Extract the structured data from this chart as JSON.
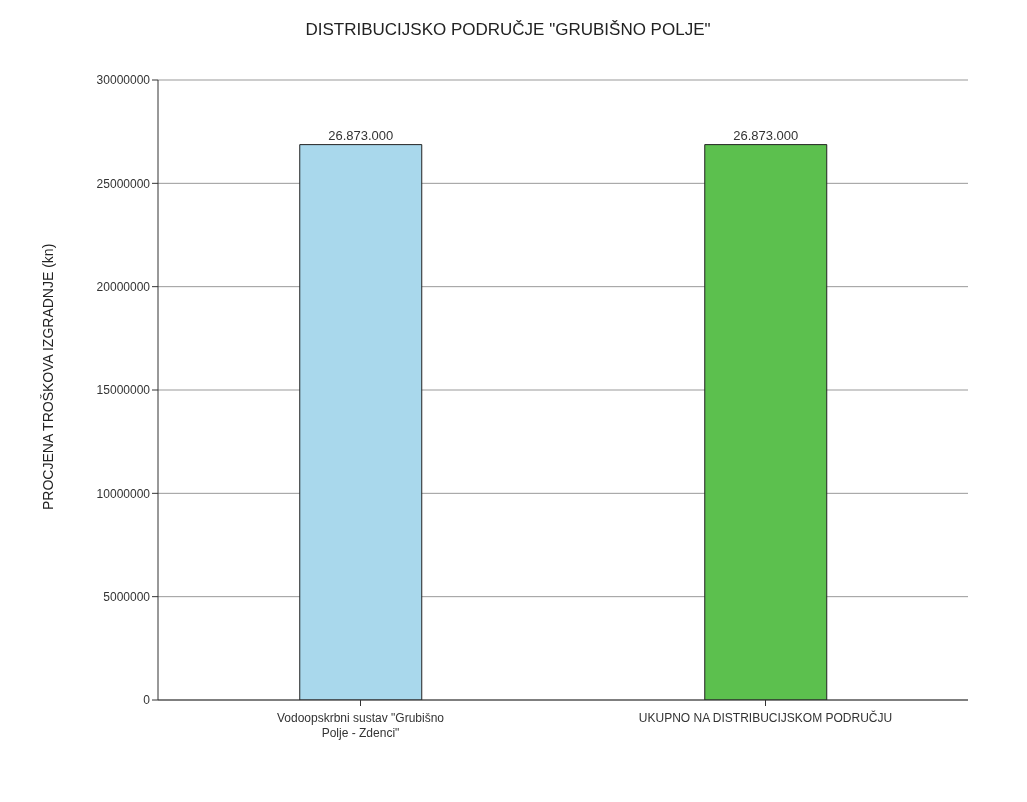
{
  "chart_data": {
    "type": "bar",
    "title": "DISTRIBUCIJSKO PODRUČJE \"GRUBIŠNO POLJE\"",
    "ylabel": "PROCJENA TROŠKOVA IZGRADNJE (kn)",
    "categories": [
      "Vodoopskrbni sustav \"Grubišno Polje - Zdenci\"",
      "UKUPNO NA DISTRIBUCIJSKOM PODRUČJU"
    ],
    "values": [
      26873000,
      26873000
    ],
    "colors": [
      "#a9d8ec",
      "#5cc04e"
    ],
    "value_labels": [
      "26.873.000",
      "26.873.000"
    ],
    "ylim": [
      0,
      30000000
    ],
    "yticks": [
      0,
      5000000,
      10000000,
      15000000,
      20000000,
      25000000,
      30000000
    ],
    "grid": "y"
  }
}
